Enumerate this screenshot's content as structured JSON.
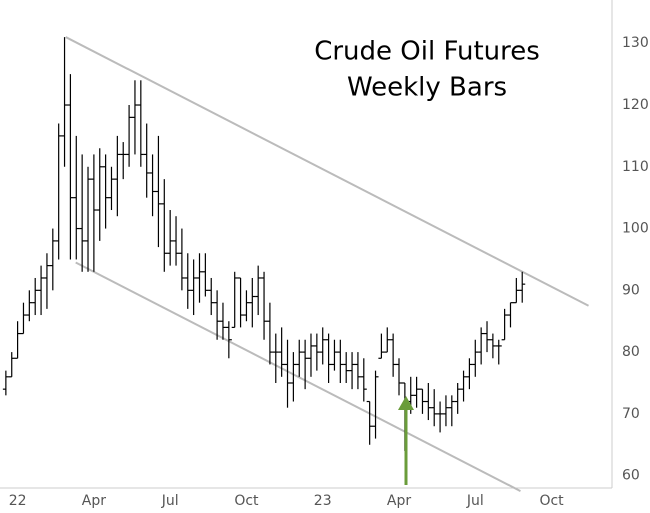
{
  "chart_data": {
    "type": "ohlc",
    "title": [
      "Crude Oil Futures",
      "Weekly Bars"
    ],
    "color": "#000000",
    "x": [
      0,
      1,
      2,
      3,
      4,
      5,
      6,
      7,
      8,
      9,
      10,
      11,
      12,
      13,
      14,
      15,
      16,
      17,
      18,
      19,
      20,
      21,
      22,
      23,
      24,
      25,
      26,
      27,
      28,
      29,
      30,
      31,
      32,
      33,
      34,
      35,
      36,
      37,
      38,
      39,
      40,
      41,
      42,
      43,
      44,
      45,
      46,
      47,
      48,
      49,
      50,
      51,
      52,
      53,
      54,
      55,
      56,
      57,
      58,
      59,
      60,
      61,
      62,
      63,
      64,
      65,
      66,
      67,
      68,
      69,
      70,
      71,
      72,
      73,
      74,
      75,
      76,
      77,
      78,
      79,
      80,
      81,
      82,
      83,
      84,
      85,
      86,
      87,
      88
    ],
    "open": [
      74,
      76,
      79,
      83,
      86,
      88,
      90,
      92,
      94,
      98,
      115,
      120,
      105,
      100,
      98,
      108,
      103,
      110,
      105,
      108,
      112,
      112,
      118,
      120,
      112,
      109,
      106,
      104,
      96,
      98,
      96,
      92,
      90,
      92,
      93,
      90,
      88,
      85,
      84,
      84,
      92,
      86,
      88,
      89,
      92,
      85,
      80,
      80,
      78,
      75,
      78,
      80,
      79,
      81,
      80,
      82,
      78,
      80,
      78,
      77,
      78,
      76,
      72,
      68,
      79,
      80,
      82,
      78,
      75,
      72,
      73,
      74,
      72,
      71,
      70,
      70,
      71,
      72,
      74,
      76,
      78,
      80,
      83,
      82,
      81,
      82,
      86,
      88,
      90
    ],
    "high": [
      77,
      80,
      85,
      88,
      90,
      92,
      94,
      96,
      100,
      117,
      131,
      125,
      115,
      112,
      110,
      112,
      113,
      112,
      110,
      115,
      114,
      120,
      124,
      124,
      117,
      112,
      115,
      108,
      103,
      102,
      100,
      96,
      95,
      96,
      96,
      92,
      90,
      88,
      85,
      93,
      92,
      90,
      92,
      94,
      93,
      88,
      83,
      84,
      82,
      80,
      82,
      82,
      83,
      83,
      84,
      83,
      82,
      82,
      80,
      80,
      80,
      79,
      72,
      77,
      83,
      84,
      83,
      79,
      75,
      76,
      76,
      74,
      75,
      74,
      72,
      73,
      73,
      75,
      77,
      79,
      82,
      84,
      85,
      83,
      82,
      87,
      88,
      92,
      93
    ],
    "low": [
      73,
      76,
      79,
      83,
      85,
      86,
      86,
      87,
      90,
      95,
      110,
      95,
      95,
      93,
      93,
      93,
      98,
      100,
      103,
      102,
      108,
      110,
      112,
      110,
      105,
      102,
      97,
      93,
      94,
      94,
      90,
      87,
      86,
      88,
      89,
      86,
      82,
      82,
      79,
      84,
      84,
      85,
      84,
      86,
      82,
      78,
      75,
      76,
      71,
      72,
      76,
      74,
      76,
      77,
      78,
      75,
      77,
      75,
      75,
      74,
      74,
      72,
      65,
      66,
      79,
      80,
      76,
      73,
      64,
      70,
      71,
      70,
      69,
      68,
      67,
      68,
      68,
      70,
      72,
      74,
      76,
      78,
      80,
      79,
      78,
      82,
      84,
      88,
      88
    ],
    "close": [
      76,
      79,
      83,
      86,
      88,
      90,
      92,
      94,
      98,
      115,
      120,
      105,
      100,
      98,
      108,
      103,
      110,
      105,
      108,
      112,
      112,
      118,
      120,
      112,
      109,
      106,
      104,
      96,
      98,
      96,
      92,
      90,
      92,
      93,
      90,
      88,
      85,
      84,
      82,
      92,
      86,
      88,
      89,
      92,
      85,
      80,
      80,
      78,
      75,
      78,
      80,
      79,
      81,
      80,
      82,
      78,
      80,
      78,
      77,
      78,
      76,
      74,
      68,
      76,
      80,
      82,
      78,
      75,
      72,
      73,
      74,
      72,
      71,
      70,
      70,
      71,
      72,
      74,
      76,
      78,
      80,
      83,
      82,
      81,
      81,
      86,
      88,
      90,
      91
    ],
    "trendlines": [
      {
        "color": "#bbbbbb",
        "x": [
          10.2,
          99.3
        ],
        "y": [
          131,
          87.5
        ]
      },
      {
        "color": "#bbbbbb",
        "x": [
          11.9,
          87.7
        ],
        "y": [
          94.5,
          57.5
        ]
      }
    ],
    "xlim": [
      -1,
      103.3
    ],
    "xticks": [
      {
        "value": 2,
        "label": "22"
      },
      {
        "value": 15,
        "label": "Apr"
      },
      {
        "value": 28,
        "label": "Jul"
      },
      {
        "value": 41,
        "label": "Oct"
      },
      {
        "value": 54,
        "label": "23"
      },
      {
        "value": 67,
        "label": "Apr"
      },
      {
        "value": 80,
        "label": "Jul"
      },
      {
        "value": 93,
        "label": "Oct"
      }
    ],
    "ylim": [
      58,
      137
    ],
    "yticks": [
      60,
      70,
      80,
      90,
      100,
      110,
      120,
      130
    ]
  }
}
